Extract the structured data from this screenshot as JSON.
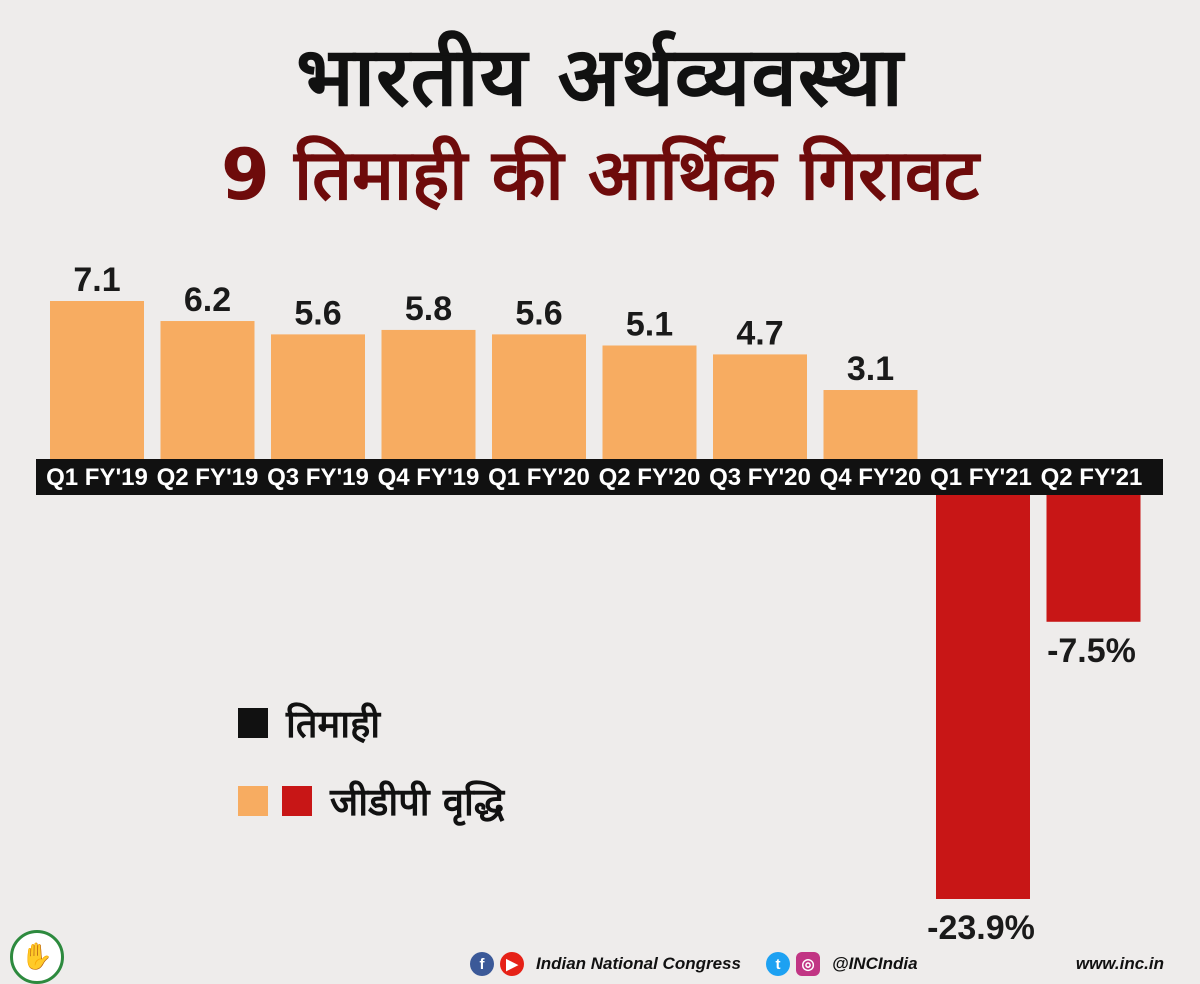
{
  "title_line1": "भारतीय अर्थव्यवस्था",
  "title_line2": "9 तिमाही की आर्थिक गिरावट",
  "legend": {
    "quarter_label": "तिमाही",
    "gdp_label": "जीडीपी वृद्धि"
  },
  "colors": {
    "positive_bar": "#f7ac61",
    "negative_bar": "#c81616",
    "category_band": "#111111",
    "title_line2": "#6e0b0b"
  },
  "chart_data": {
    "type": "bar",
    "categories": [
      "Q1 FY'19",
      "Q2 FY'19",
      "Q3 FY'19",
      "Q4 FY'19",
      "Q1 FY'20",
      "Q2 FY'20",
      "Q3 FY'20",
      "Q4 FY'20",
      "Q1 FY'21",
      "Q2 FY'21"
    ],
    "values": [
      7.1,
      6.2,
      5.6,
      5.8,
      5.6,
      5.1,
      4.7,
      3.1,
      -23.9,
      -7.5
    ],
    "data_labels": [
      "7.1",
      "6.2",
      "5.6",
      "5.8",
      "5.6",
      "5.1",
      "4.7",
      "3.1",
      "-23.9%",
      "-7.5%"
    ],
    "title": "9 तिमाही की आर्थिक गिरावट",
    "xlabel": "",
    "ylabel": "",
    "ylim": [
      -23.9,
      7.1
    ],
    "grid": false,
    "legend_position": "left-middle"
  },
  "footer": {
    "organization": "Indian National Congress",
    "handle": "@INCIndia",
    "website": "www.inc.in",
    "icons": [
      "congress-logo",
      "facebook-icon",
      "youtube-icon",
      "twitter-icon",
      "instagram-icon"
    ]
  }
}
